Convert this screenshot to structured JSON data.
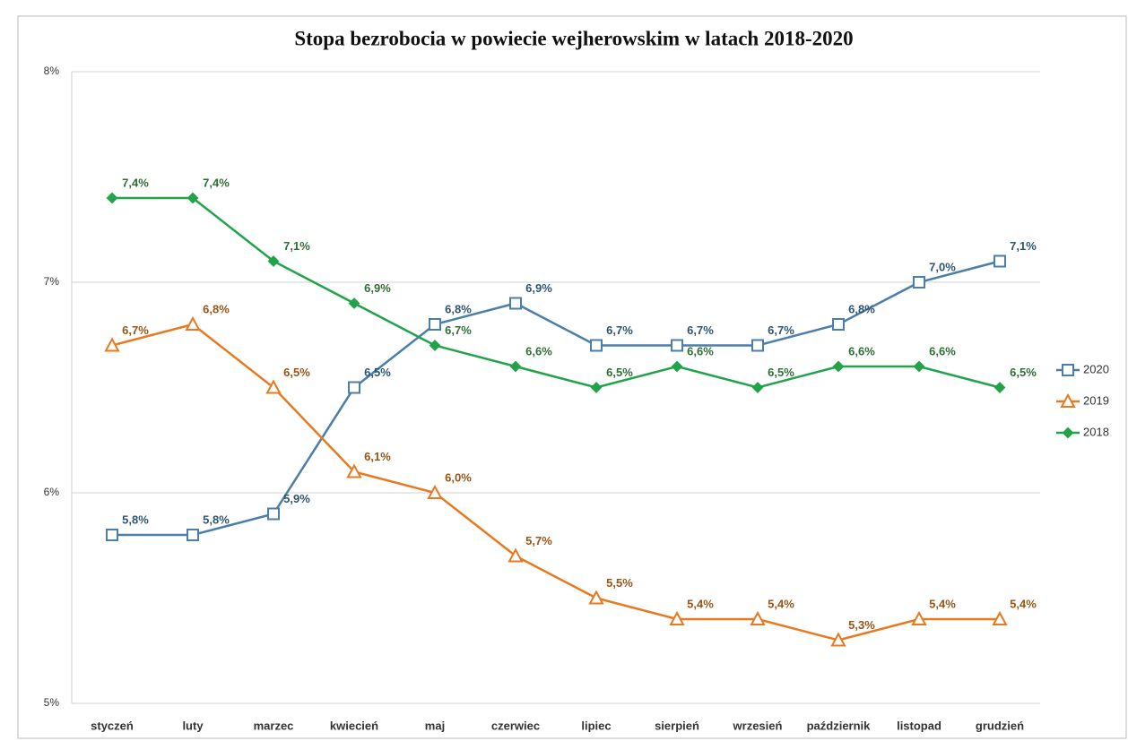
{
  "chart_data": {
    "type": "line",
    "title": "Stopa bezrobocia w powiecie wejherowskim  w latach 2018-2020",
    "categories": [
      "styczeń",
      "luty",
      "marzec",
      "kwiecień",
      "maj",
      "czerwiec",
      "lipiec",
      "sierpień",
      "wrzesień",
      "październik",
      "listopad",
      "grudzień"
    ],
    "series": [
      {
        "name": "2020",
        "color": "#4a7eab",
        "marker": "square",
        "values": [
          5.8,
          5.8,
          5.9,
          6.5,
          6.8,
          6.9,
          6.7,
          6.7,
          6.7,
          6.8,
          7.0,
          7.1
        ],
        "value_labels": [
          "5,8%",
          "5,8%",
          "5,9%",
          "6,5%",
          "6,8%",
          "6,9%",
          "6,7%",
          "6,7%",
          "6,7%",
          "6,8%",
          "7,0%",
          "7,1%"
        ]
      },
      {
        "name": "2019",
        "color": "#e8791f",
        "marker": "triangle",
        "values": [
          6.7,
          6.8,
          6.5,
          6.1,
          6.0,
          5.7,
          5.5,
          5.4,
          5.4,
          5.3,
          5.4,
          5.4
        ],
        "value_labels": [
          "6,7%",
          "6,8%",
          "6,5%",
          "6,1%",
          "6,0%",
          "5,7%",
          "5,5%",
          "5,4%",
          "5,4%",
          "5,3%",
          "5,4%",
          "5,4%"
        ]
      },
      {
        "name": "2018",
        "color": "#21a34a",
        "marker": "diamond",
        "values": [
          7.4,
          7.4,
          7.1,
          6.9,
          6.7,
          6.6,
          6.5,
          6.6,
          6.5,
          6.6,
          6.6,
          6.5
        ],
        "value_labels": [
          "7,4%",
          "7,4%",
          "7,1%",
          "6,9%",
          "6,7%",
          "6,6%",
          "6,5%",
          "6,6%",
          "6,5%",
          "6,6%",
          "6,6%",
          "6,5%"
        ]
      }
    ],
    "ylim": [
      5,
      8
    ],
    "yticks": [
      {
        "value": 5,
        "label": "5%"
      },
      {
        "value": 6,
        "label": "6%"
      },
      {
        "value": 7,
        "label": "7%"
      },
      {
        "value": 8,
        "label": "8%"
      }
    ],
    "grid": true,
    "legend": "right"
  }
}
